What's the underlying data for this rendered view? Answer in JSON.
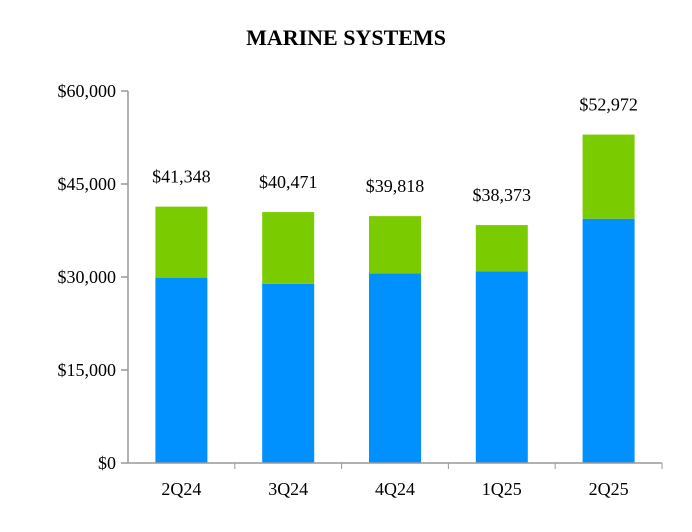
{
  "chart_data": {
    "type": "bar",
    "stacked": true,
    "title": "MARINE SYSTEMS",
    "categories": [
      "2Q24",
      "3Q24",
      "4Q24",
      "1Q25",
      "2Q25"
    ],
    "series": [
      {
        "values": [
          29900,
          28900,
          30600,
          30900,
          39400
        ],
        "color": "#0091FF"
      },
      {
        "values": [
          11448,
          11571,
          9218,
          7473,
          13572
        ],
        "color": "#7ACC00"
      }
    ],
    "totals": [
      41348,
      40471,
      39818,
      38373,
      52972
    ],
    "total_labels": [
      "$41,348",
      "$40,471",
      "$39,818",
      "$38,373",
      "$52,972"
    ],
    "yticks": [
      0,
      15000,
      30000,
      45000,
      60000
    ],
    "ytick_labels": [
      "$0",
      "$15,000",
      "$30,000",
      "$45,000",
      "$60,000"
    ],
    "ylim": [
      0,
      60000
    ],
    "grid": false,
    "legend": "none"
  }
}
